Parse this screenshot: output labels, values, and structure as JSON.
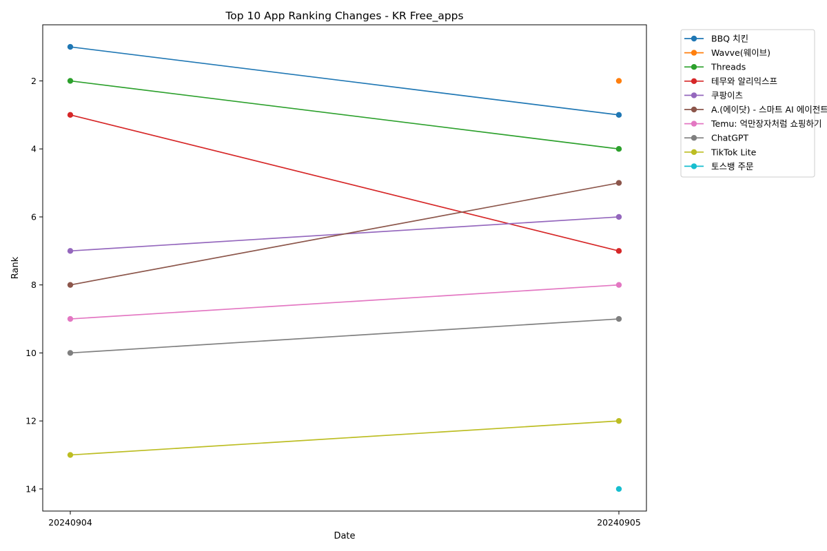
{
  "chart_data": {
    "type": "line",
    "title": "Top 10 App Ranking Changes - KR Free_apps",
    "xlabel": "Date",
    "ylabel": "Rank",
    "categories": [
      "20240904",
      "20240905"
    ],
    "y_inverted": true,
    "ylim": [
      14.65,
      0.35
    ],
    "yticks": [
      2,
      4,
      6,
      8,
      10,
      12,
      14
    ],
    "grid": false,
    "legend_position": "outside-top-right",
    "series": [
      {
        "name": "BBQ 치킨",
        "color": "#1f77b4",
        "values": [
          1,
          3
        ]
      },
      {
        "name": "Wavve(웨이브)",
        "color": "#ff7f0e",
        "values": [
          null,
          2
        ]
      },
      {
        "name": "Threads",
        "color": "#2ca02c",
        "values": [
          2,
          4
        ]
      },
      {
        "name": "테무와 알리익스프",
        "color": "#d62728",
        "values": [
          3,
          7
        ]
      },
      {
        "name": "쿠팡이츠",
        "color": "#9467bd",
        "values": [
          7,
          6
        ]
      },
      {
        "name": "A.(에이닷) - 스마트 AI 에이전트",
        "color": "#8c564b",
        "values": [
          8,
          5
        ]
      },
      {
        "name": "Temu: 억만장자처럼 쇼핑하기",
        "color": "#e377c2",
        "values": [
          9,
          8
        ]
      },
      {
        "name": "ChatGPT",
        "color": "#7f7f7f",
        "values": [
          10,
          9
        ]
      },
      {
        "name": "TikTok Lite",
        "color": "#bcbd22",
        "values": [
          13,
          12
        ]
      },
      {
        "name": "토스뱅 주문",
        "color": "#17becf",
        "values": [
          null,
          14
        ]
      }
    ]
  }
}
